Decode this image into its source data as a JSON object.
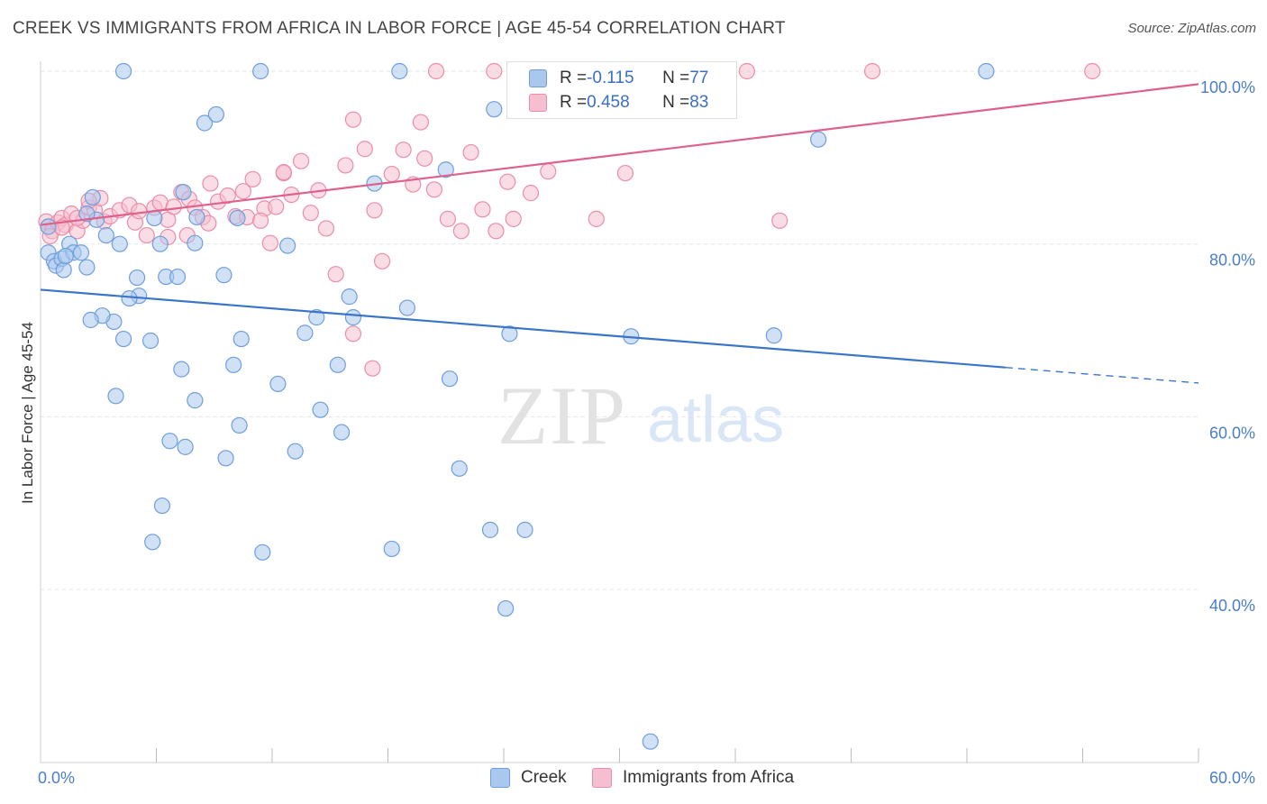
{
  "title": "CREEK VS IMMIGRANTS FROM AFRICA IN LABOR FORCE | AGE 45-54 CORRELATION CHART",
  "source": "Source: ZipAtlas.com",
  "watermark": {
    "zip": "ZIP",
    "atlas": "atlas"
  },
  "legend_top": {
    "rows": [
      {
        "r_label": "R = ",
        "r_value": "-0.115",
        "n_label": "N = ",
        "n_value": "77"
      },
      {
        "r_label": "R = ",
        "r_value": "0.458",
        "n_label": "N = ",
        "n_value": "83"
      }
    ]
  },
  "colors": {
    "creek_fill": "#aac8ee",
    "creek_stroke": "#6e9edb",
    "creek_line": "#3a75c8",
    "africa_fill": "#f6bfd0",
    "africa_stroke": "#ea8daa",
    "africa_line": "#e0608c",
    "tick_text": "#4a7ec9"
  },
  "chart_data": {
    "type": "scatter",
    "xlabel": "",
    "ylabel": "In Labor Force | Age 45-54",
    "xlim": [
      0,
      60
    ],
    "ylim": [
      20,
      102
    ],
    "y_ticks": [
      {
        "v": 40,
        "label": "40.0%"
      },
      {
        "v": 60,
        "label": "60.0%"
      },
      {
        "v": 80,
        "label": "80.0%"
      },
      {
        "v": 100,
        "label": "100.0%"
      }
    ],
    "x_tick_labels": [
      {
        "v": 0,
        "label": "0.0%"
      },
      {
        "v": 60,
        "label": "60.0%"
      }
    ],
    "x_minor_ticks": [
      6,
      12,
      18,
      24,
      30,
      36,
      42,
      48,
      54,
      60
    ],
    "grid": true,
    "legend_position": "top-center",
    "series": [
      {
        "name": "Creek",
        "trend": {
          "x0": 0,
          "y0": 74.7,
          "x1": 50,
          "y1": 65.7,
          "dash_to_x": 60,
          "dash_to_y": 63.9
        },
        "points": [
          [
            0.4,
            82
          ],
          [
            0.4,
            79
          ],
          [
            0.7,
            78
          ],
          [
            0.8,
            77.5
          ],
          [
            1.1,
            78.3
          ],
          [
            1.2,
            77
          ],
          [
            1.5,
            80
          ],
          [
            1.7,
            79
          ],
          [
            2.1,
            79
          ],
          [
            2.4,
            77.3
          ],
          [
            2.7,
            85.4
          ],
          [
            2.9,
            82.8
          ],
          [
            2.4,
            83.5
          ],
          [
            3.4,
            81
          ],
          [
            4.1,
            80
          ],
          [
            5.0,
            76.1
          ],
          [
            3.8,
            71
          ],
          [
            4.3,
            69
          ],
          [
            3.9,
            62.4
          ],
          [
            5.1,
            74
          ],
          [
            4.6,
            73.7
          ],
          [
            5.7,
            68.8
          ],
          [
            5.9,
            83
          ],
          [
            6.2,
            80
          ],
          [
            6.5,
            76.2
          ],
          [
            7.1,
            76.2
          ],
          [
            7.3,
            65.5
          ],
          [
            6.7,
            57.2
          ],
          [
            8.0,
            61.9
          ],
          [
            8.0,
            80.1
          ],
          [
            8.1,
            83.1
          ],
          [
            8.5,
            94
          ],
          [
            9.1,
            95
          ],
          [
            9.5,
            76.4
          ],
          [
            10.0,
            66
          ],
          [
            10.4,
            69
          ],
          [
            10.3,
            59
          ],
          [
            10.2,
            83
          ],
          [
            9.6,
            55.2
          ],
          [
            11.4,
            100
          ],
          [
            12.3,
            63.8
          ],
          [
            12.8,
            79.8
          ],
          [
            13.2,
            56
          ],
          [
            13.7,
            69.7
          ],
          [
            14.3,
            71.5
          ],
          [
            14.5,
            60.8
          ],
          [
            15.4,
            66
          ],
          [
            16.0,
            73.9
          ],
          [
            16.2,
            71.5
          ],
          [
            15.6,
            58.2
          ],
          [
            17.3,
            87
          ],
          [
            18.6,
            100
          ],
          [
            18.2,
            44.7
          ],
          [
            19.0,
            72.6
          ],
          [
            21.0,
            88.6
          ],
          [
            21.2,
            64.4
          ],
          [
            21.7,
            54
          ],
          [
            23.5,
            95.6
          ],
          [
            23.3,
            46.9
          ],
          [
            25.1,
            46.9
          ],
          [
            24.3,
            69.6
          ],
          [
            24.1,
            37.8
          ],
          [
            27.2,
            100
          ],
          [
            30.6,
            69.3
          ],
          [
            31.6,
            22.4
          ],
          [
            38.0,
            69.4
          ],
          [
            40.3,
            92.1
          ],
          [
            49.0,
            100
          ],
          [
            7.4,
            86
          ],
          [
            3.2,
            71.7
          ],
          [
            2.6,
            71.2
          ],
          [
            1.3,
            78.6
          ],
          [
            4.3,
            100
          ],
          [
            5.8,
            45.5
          ],
          [
            6.3,
            49.7
          ],
          [
            11.5,
            44.3
          ],
          [
            7.5,
            56.5
          ]
        ]
      },
      {
        "name": "Immigrants from Africa",
        "trend": {
          "x0": 0,
          "y0": 82.2,
          "x1": 60,
          "y1": 98.5
        },
        "points": [
          [
            0.3,
            82.6
          ],
          [
            0.4,
            82
          ],
          [
            0.6,
            81.5
          ],
          [
            0.9,
            82.5
          ],
          [
            1.1,
            83
          ],
          [
            1.3,
            82.2
          ],
          [
            1.6,
            83.5
          ],
          [
            1.9,
            81.5
          ],
          [
            2.2,
            82.7
          ],
          [
            2.5,
            84.2
          ],
          [
            2.8,
            83.9
          ],
          [
            3.1,
            85.3
          ],
          [
            3.3,
            82.6
          ],
          [
            3.6,
            83.2
          ],
          [
            4.1,
            83.9
          ],
          [
            4.6,
            84.5
          ],
          [
            4.9,
            82.5
          ],
          [
            5.1,
            83.8
          ],
          [
            5.5,
            81
          ],
          [
            5.9,
            84.2
          ],
          [
            6.2,
            84.8
          ],
          [
            6.6,
            82.8
          ],
          [
            6.9,
            84.3
          ],
          [
            7.3,
            86
          ],
          [
            7.7,
            85.2
          ],
          [
            8.0,
            84.2
          ],
          [
            8.4,
            83.1
          ],
          [
            8.8,
            87
          ],
          [
            9.2,
            84.9
          ],
          [
            9.7,
            85.6
          ],
          [
            10.1,
            83.2
          ],
          [
            10.5,
            86.1
          ],
          [
            11.0,
            87.5
          ],
          [
            11.6,
            84.1
          ],
          [
            11.9,
            80.1
          ],
          [
            12.2,
            84.3
          ],
          [
            12.6,
            88.2
          ],
          [
            13.0,
            85.7
          ],
          [
            13.5,
            89.6
          ],
          [
            14.0,
            83.6
          ],
          [
            14.4,
            86.2
          ],
          [
            14.8,
            81.8
          ],
          [
            15.3,
            76.5
          ],
          [
            15.8,
            89.1
          ],
          [
            16.2,
            94.4
          ],
          [
            16.8,
            91
          ],
          [
            17.3,
            83.9
          ],
          [
            17.7,
            78
          ],
          [
            18.2,
            88.1
          ],
          [
            18.8,
            90.9
          ],
          [
            19.3,
            86.9
          ],
          [
            19.9,
            89.9
          ],
          [
            20.4,
            86.3
          ],
          [
            21.1,
            82.9
          ],
          [
            21.8,
            81.5
          ],
          [
            22.3,
            90.6
          ],
          [
            22.9,
            84
          ],
          [
            23.6,
            81.5
          ],
          [
            24.2,
            87.2
          ],
          [
            24.5,
            82.9
          ],
          [
            25.4,
            85.9
          ],
          [
            26.3,
            88.4
          ],
          [
            28.8,
            82.9
          ],
          [
            30.3,
            88.2
          ],
          [
            36.6,
            100
          ],
          [
            43.1,
            100
          ],
          [
            54.5,
            100
          ],
          [
            20.5,
            100
          ],
          [
            23.5,
            100
          ],
          [
            19.7,
            94.1
          ],
          [
            16.2,
            69.6
          ],
          [
            17.2,
            65.6
          ],
          [
            10.7,
            83.1
          ],
          [
            11.4,
            82.7
          ],
          [
            8.7,
            82.4
          ],
          [
            6.6,
            80.8
          ],
          [
            7.6,
            81
          ],
          [
            1.9,
            83
          ],
          [
            2.5,
            85
          ],
          [
            0.5,
            80.9
          ],
          [
            12.6,
            88.3
          ],
          [
            1.1,
            81.9
          ],
          [
            38.3,
            82.7
          ]
        ]
      }
    ]
  },
  "legend_bottom": [
    {
      "label": "Creek"
    },
    {
      "label": "Immigrants from Africa"
    }
  ]
}
